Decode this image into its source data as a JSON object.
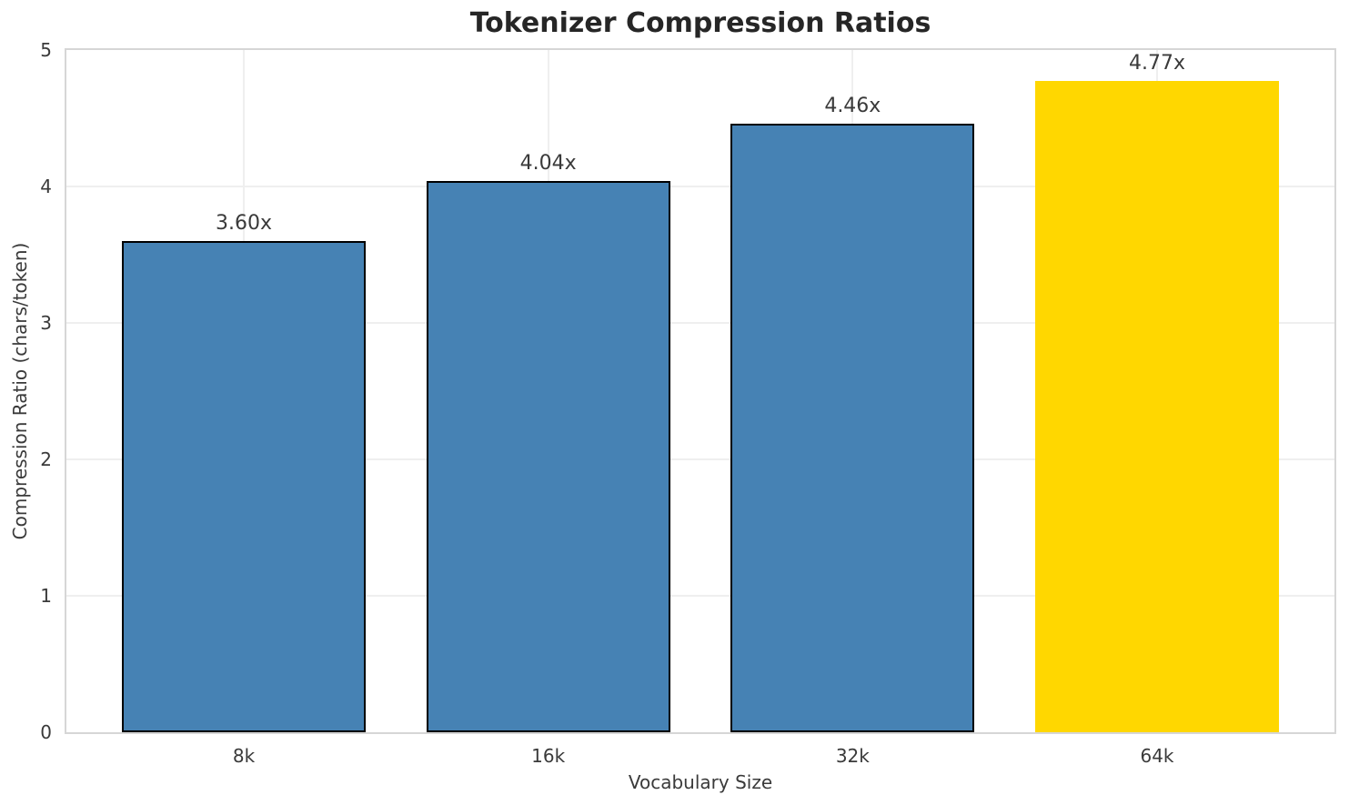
{
  "chart_data": {
    "type": "bar",
    "title": "Tokenizer Compression Ratios",
    "xlabel": "Vocabulary Size",
    "ylabel": "Compression Ratio (chars/token)",
    "categories": [
      "8k",
      "16k",
      "32k",
      "64k"
    ],
    "values": [
      3.6,
      4.04,
      4.46,
      4.77
    ],
    "bar_labels": [
      "3.60x",
      "4.04x",
      "4.46x",
      "4.77x"
    ],
    "ylim": [
      0,
      5
    ],
    "yticks": [
      "0",
      "1",
      "2",
      "3",
      "4",
      "5"
    ],
    "grid": "on",
    "legend": "none",
    "bar_colors": [
      "#4682b4",
      "#4682b4",
      "#4682b4",
      "#ffd700"
    ],
    "bar_edge_colors": [
      "#000000",
      "#000000",
      "#000000",
      "none"
    ],
    "highlight_index": 3
  },
  "colors": {
    "bar_blue": "#4682b4",
    "bar_gold": "#ffd700",
    "bar_edge": "#000000",
    "gridline": "#efefef",
    "spine": "#d6d6d6",
    "title_text": "#262626",
    "tick_text": "#3a3a3a"
  }
}
